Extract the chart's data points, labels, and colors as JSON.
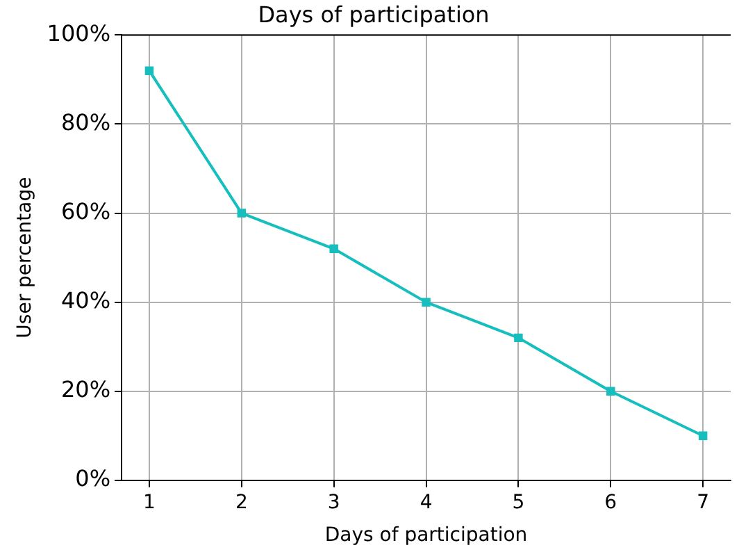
{
  "chart_data": {
    "type": "line",
    "title": "Days of participation",
    "xlabel": "Days of participation",
    "ylabel": "User percentage",
    "x": [
      1,
      2,
      3,
      4,
      5,
      6,
      7
    ],
    "series": [
      {
        "color": "#17bebe",
        "values": [
          92,
          60,
          52,
          40,
          32,
          20,
          10
        ]
      }
    ],
    "xlim": [
      0.7,
      7.3
    ],
    "xticks": [
      1,
      2,
      3,
      4,
      5,
      6,
      7
    ],
    "ylim": [
      0,
      100
    ],
    "yticks": [
      {
        "value": 0,
        "label": "0%"
      },
      {
        "value": 20,
        "label": "20%"
      },
      {
        "value": 40,
        "label": "40%"
      },
      {
        "value": 60,
        "label": "60%"
      },
      {
        "value": 80,
        "label": "80%"
      },
      {
        "value": 100,
        "label": "100%"
      }
    ],
    "grid": true,
    "legend": false,
    "marker": "square",
    "line_style": "solid"
  }
}
